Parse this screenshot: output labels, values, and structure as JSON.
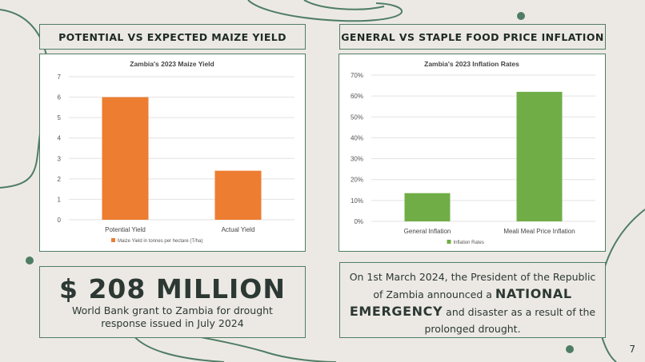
{
  "slide": {
    "page_number": "7"
  },
  "left_panel": {
    "header": "POTENTIAL VS EXPECTED MAIZE YIELD"
  },
  "right_panel": {
    "header": "GENERAL VS STAPLE FOOD PRICE INFLATION"
  },
  "stat_box": {
    "amount": "$ 208 MILLION",
    "caption": "World Bank grant to Zambia for drought response issued in July 2024"
  },
  "emergency_box": {
    "text_before": "On 1st March 2024, the President of the Republic of Zambia announced a",
    "emphasis": "NATIONAL EMERGENCY",
    "text_after": "and disaster as a result of the prolonged drought."
  },
  "colors": {
    "background": "#ece9e4",
    "accent_green": "#4f7d64",
    "maize_bar": "#ed7d31",
    "inflation_bar": "#70ad47"
  },
  "chart_data": [
    {
      "type": "bar",
      "title": "Zambia's 2023 Maize Yield",
      "categories": [
        "Potential Yield",
        "Actual Yield"
      ],
      "series": [
        {
          "name": "Maize Yield in tonnes per hectare (T/ha)",
          "values": [
            6,
            2.4
          ]
        }
      ],
      "ylim": [
        0,
        7
      ],
      "yticks": [
        "0",
        "1",
        "2",
        "3",
        "4",
        "5",
        "6",
        "7"
      ],
      "grid": true,
      "legend": "bottom"
    },
    {
      "type": "bar",
      "title": "Zambia's 2023 Inflation Rates",
      "categories": [
        "General Inflation",
        "Meali Meal Price Inflation"
      ],
      "series": [
        {
          "name": "Inflation Rates",
          "values": [
            13.5,
            62
          ]
        }
      ],
      "ylim": [
        0,
        70
      ],
      "yticks": [
        "0%",
        "10%",
        "20%",
        "30%",
        "40%",
        "50%",
        "60%",
        "70%"
      ],
      "grid": true,
      "legend": "bottom"
    }
  ]
}
